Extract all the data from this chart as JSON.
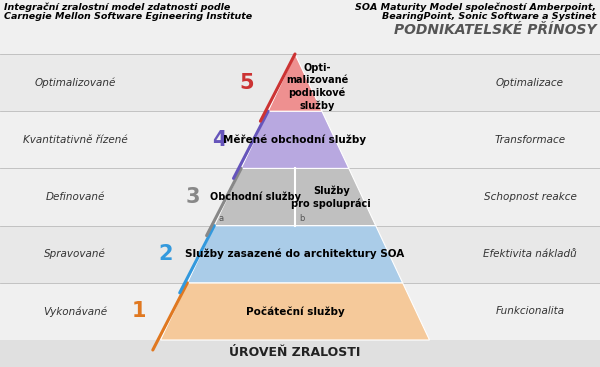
{
  "bg_color": "#e0e0e0",
  "title_left_line1": "Integrační zralostní model zdatnosti podle",
  "title_left_line2": "Carnegie Mellon Software Egineering Institute",
  "title_right_line1": "SOA Maturity Model společností Amberpoint,",
  "title_right_line2": "BearingPoint, Sonic Software a Systinet",
  "header_right": "PODNIKATELSKÉ PŘÍNOSY",
  "footer_center": "ÚROVEŇ ZRALOSTI",
  "band_colors": [
    "#f5f5f5",
    "#eeeeee",
    "#f0f0f0",
    "#f5f5f5",
    "#eeeeee"
  ],
  "levels": [
    {
      "num": "1",
      "num_color": "#e07820",
      "left_label": "Vykonávané",
      "right_label": "Funkcionalita",
      "text": "Počáteční služby",
      "fill_color": "#f5c99a",
      "sub": null
    },
    {
      "num": "2",
      "num_color": "#3399dd",
      "left_label": "Spravované",
      "right_label": "Efektivita nákladů",
      "text": "Služby zasazené do architektury SOA",
      "fill_color": "#aacce8",
      "sub": null
    },
    {
      "num": "3",
      "num_color": "#888888",
      "left_label": "Definované",
      "right_label": "Schopnost reakce",
      "text_a": "Obchodní služby",
      "text_b": "Služby\npro spolupráci",
      "fill_color": "#c0c0c0",
      "sub": "ab"
    },
    {
      "num": "4",
      "num_color": "#6655bb",
      "left_label": "Kvantitativně řízené",
      "right_label": "Transformace",
      "text": "Měřené obchodní služby",
      "fill_color": "#b8a8e0",
      "sub": null
    },
    {
      "num": "5",
      "num_color": "#cc3333",
      "left_label": "Optimalizované",
      "right_label": "Optimalizace",
      "text": "Opti-\nmalizované\npodnikové\nslužby",
      "fill_color": "#ee9090",
      "sub": null
    }
  ]
}
